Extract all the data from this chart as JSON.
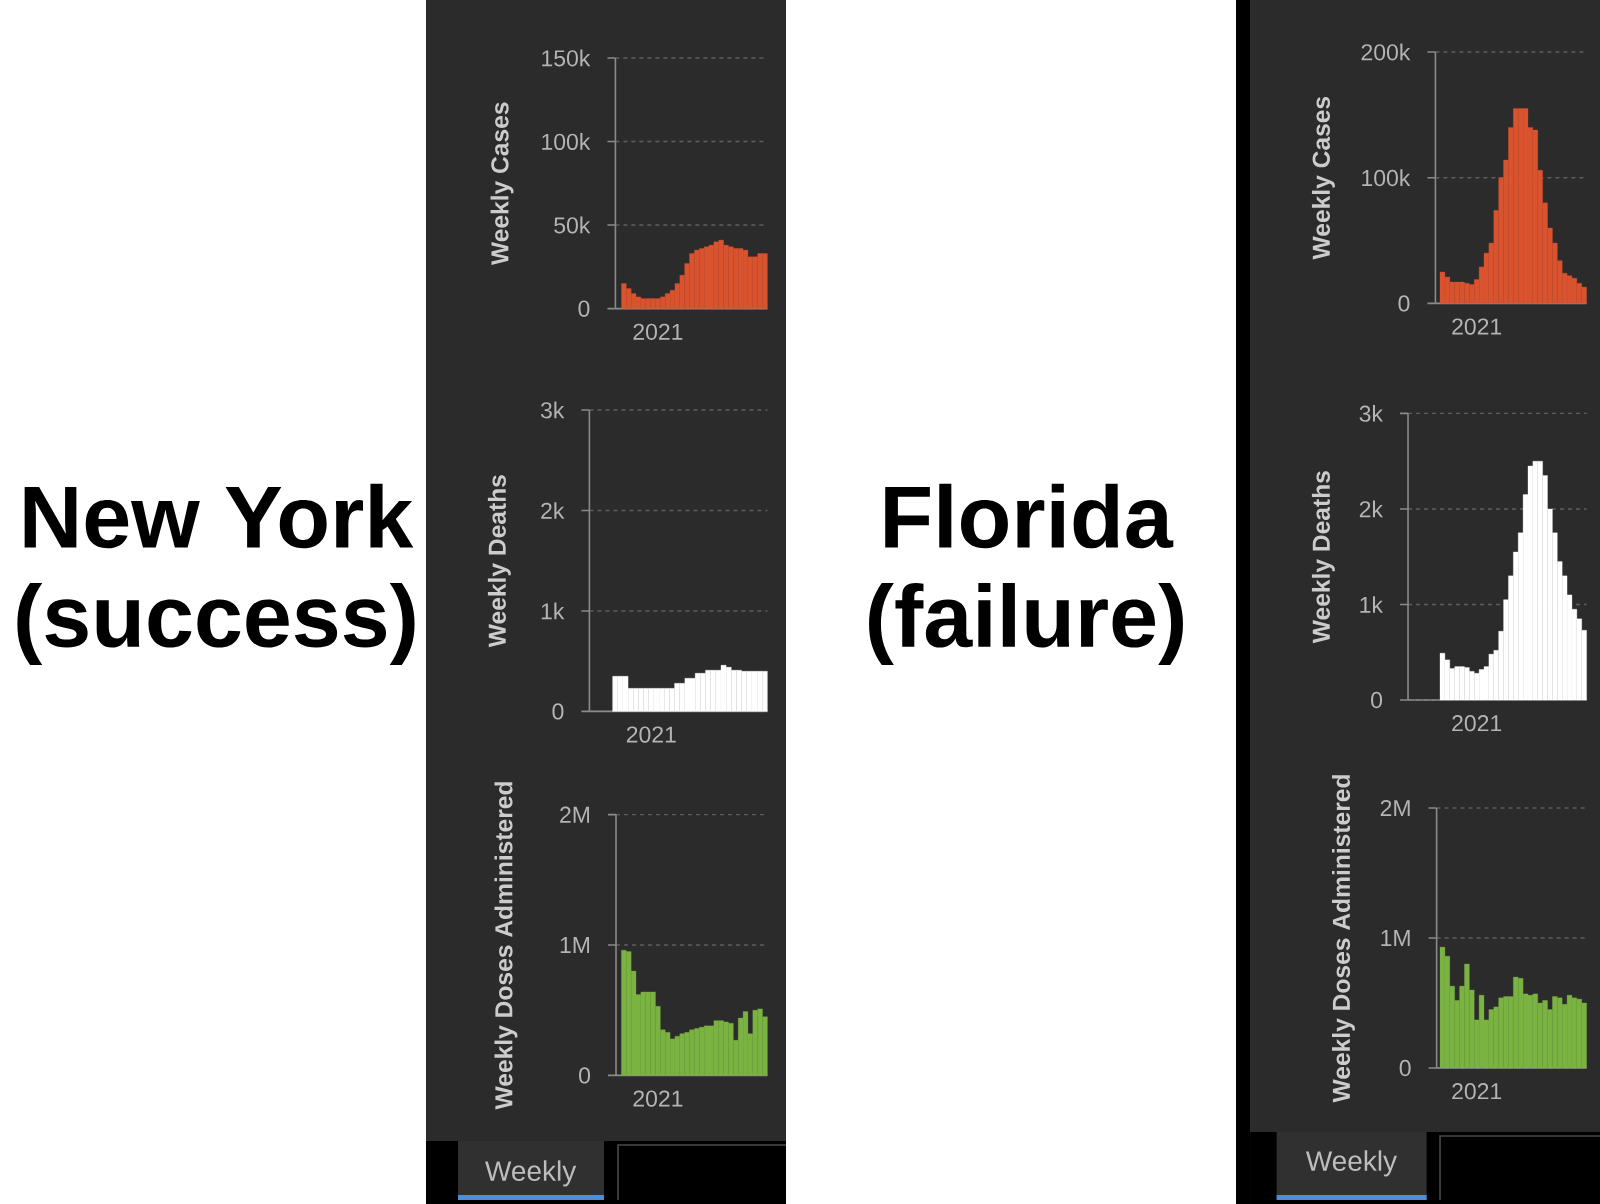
{
  "chart_data": [
    {
      "type": "other",
      "title": "New York",
      "subtitle": "(success)"
    },
    {
      "type": "bar",
      "ylabel": "Weekly Cases",
      "categories": [
        null,
        null,
        null,
        null,
        null,
        null,
        null,
        "2021",
        null,
        null,
        null,
        null,
        null,
        null,
        null,
        null,
        null,
        null,
        null,
        null,
        null,
        null,
        null,
        null,
        null,
        null,
        null,
        null,
        null,
        null
      ],
      "values": [
        15000,
        12000,
        9000,
        7000,
        6000,
        6000,
        6000,
        6000,
        7000,
        9000,
        11000,
        15000,
        20000,
        27000,
        33000,
        35000,
        36000,
        37000,
        38000,
        40000,
        41000,
        38000,
        37000,
        36000,
        36000,
        35000,
        31000,
        31000,
        33000,
        33000
      ],
      "color": "#d9532f",
      "ylim": [
        0,
        150000
      ],
      "yticks": [
        0,
        {
          "value": 50000,
          "label": "50k"
        },
        {
          "value": 100000,
          "label": "100k"
        },
        {
          "value": 150000,
          "label": "150k"
        }
      ],
      "grid": "y"
    },
    {
      "type": "bar",
      "ylabel": "Weekly Deaths",
      "categories": [
        null,
        null,
        null,
        null,
        null,
        null,
        null,
        "2021",
        null,
        null,
        null,
        null,
        null,
        null,
        null,
        null,
        null,
        null,
        null,
        null,
        null,
        null,
        null,
        null,
        null,
        null,
        null,
        null,
        null,
        null
      ],
      "values": [
        350,
        350,
        350,
        230,
        230,
        230,
        230,
        230,
        230,
        230,
        230,
        230,
        280,
        280,
        330,
        330,
        380,
        380,
        410,
        410,
        410,
        460,
        440,
        410,
        410,
        400,
        400,
        400,
        400,
        400
      ],
      "color": "#ffffff",
      "ylim": [
        0,
        3000
      ],
      "yticks": [
        0,
        {
          "value": 1000,
          "label": "1k"
        },
        {
          "value": 2000,
          "label": "2k"
        },
        {
          "value": 3000,
          "label": "3k"
        }
      ],
      "grid": "y"
    },
    {
      "type": "bar",
      "ylabel": "Weekly Doses Administered",
      "categories": [
        null,
        null,
        null,
        null,
        null,
        null,
        null,
        "2021",
        null,
        null,
        null,
        null,
        null,
        null,
        null,
        null,
        null,
        null,
        null,
        null,
        null,
        null,
        null,
        null,
        null,
        null,
        null,
        null,
        null,
        null
      ],
      "values": [
        960000,
        950000,
        800000,
        620000,
        640000,
        640000,
        640000,
        530000,
        350000,
        330000,
        280000,
        300000,
        320000,
        330000,
        350000,
        360000,
        370000,
        380000,
        380000,
        420000,
        420000,
        410000,
        400000,
        270000,
        440000,
        490000,
        320000,
        500000,
        510000,
        450000
      ],
      "color": "#7ab342",
      "ylim": [
        0,
        2000000
      ],
      "yticks": [
        0,
        {
          "value": 1000000,
          "label": "1M"
        },
        {
          "value": 2000000,
          "label": "2M"
        }
      ],
      "grid": "y",
      "annotations": [
        "Weekly"
      ]
    },
    {
      "type": "other",
      "title": "Florida",
      "subtitle": "(failure)"
    },
    {
      "type": "bar",
      "ylabel": "Weekly Cases",
      "categories": [
        null,
        null,
        null,
        null,
        null,
        null,
        null,
        "2021",
        null,
        null,
        null,
        null,
        null,
        null,
        null,
        null,
        null,
        null,
        null,
        null,
        null,
        null,
        null,
        null,
        null,
        null,
        null,
        null,
        null,
        null
      ],
      "values": [
        25000,
        21000,
        17000,
        17000,
        17000,
        16000,
        15000,
        19000,
        29000,
        40000,
        48000,
        74000,
        100000,
        114000,
        140000,
        155000,
        155000,
        155000,
        140000,
        138000,
        106000,
        80000,
        60000,
        48000,
        34000,
        24000,
        22000,
        20000,
        16000,
        13000
      ],
      "color": "#d9532f",
      "ylim": [
        0,
        200000
      ],
      "yticks": [
        0,
        {
          "value": 100000,
          "label": "100k"
        },
        {
          "value": 200000,
          "label": "200k"
        }
      ],
      "grid": "y"
    },
    {
      "type": "bar",
      "ylabel": "Weekly Deaths",
      "categories": [
        null,
        null,
        null,
        null,
        null,
        null,
        null,
        "2021",
        null,
        null,
        null,
        null,
        null,
        null,
        null,
        null,
        null,
        null,
        null,
        null,
        null,
        null,
        null,
        null,
        null,
        null,
        null,
        null,
        null,
        null
      ],
      "values": [
        490,
        420,
        330,
        350,
        350,
        340,
        300,
        280,
        320,
        350,
        480,
        520,
        720,
        1050,
        1300,
        1550,
        1750,
        2150,
        2450,
        2500,
        2500,
        2350,
        2000,
        1750,
        1450,
        1300,
        1100,
        950,
        850,
        730
      ],
      "color": "#ffffff",
      "ylim": [
        0,
        3000
      ],
      "yticks": [
        0,
        {
          "value": 1000,
          "label": "1k"
        },
        {
          "value": 2000,
          "label": "2k"
        },
        {
          "value": 3000,
          "label": "3k"
        }
      ],
      "grid": "y"
    },
    {
      "type": "bar",
      "ylabel": "Weekly Doses Administered",
      "categories": [
        null,
        null,
        null,
        null,
        null,
        null,
        null,
        "2021",
        null,
        null,
        null,
        null,
        null,
        null,
        null,
        null,
        null,
        null,
        null,
        null,
        null,
        null,
        null,
        null,
        null,
        null,
        null,
        null,
        null,
        null
      ],
      "values": [
        930000,
        860000,
        630000,
        520000,
        630000,
        800000,
        600000,
        370000,
        560000,
        370000,
        450000,
        470000,
        540000,
        550000,
        550000,
        700000,
        690000,
        570000,
        560000,
        570000,
        500000,
        520000,
        450000,
        550000,
        540000,
        490000,
        560000,
        540000,
        530000,
        500000
      ],
      "color": "#7ab342",
      "ylim": [
        0,
        2000000
      ],
      "yticks": [
        0,
        {
          "value": 1000000,
          "label": "1M"
        },
        {
          "value": 2000000,
          "label": "2M"
        }
      ],
      "grid": "y",
      "annotations": [
        "Weekly"
      ]
    }
  ]
}
